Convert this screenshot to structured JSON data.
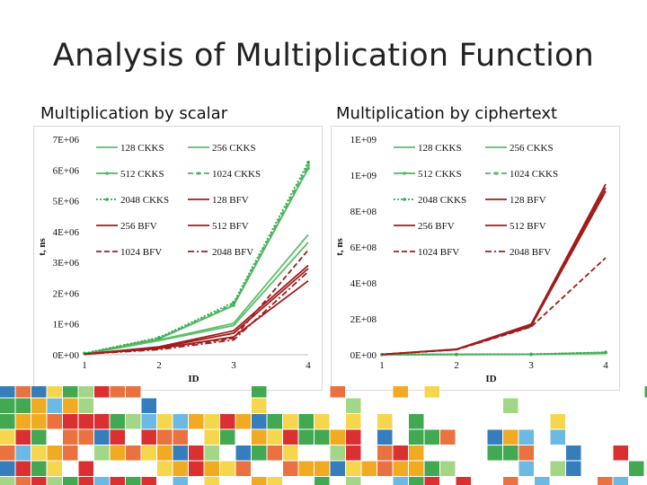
{
  "slide": {
    "title": "Analysis of Multiplication Function"
  },
  "chart_data": [
    {
      "type": "line",
      "title": "Multiplication by scalar",
      "xlabel": "ID",
      "ylabel": "t, ns",
      "x": [
        1,
        2,
        3,
        4
      ],
      "xlim": [
        1,
        4
      ],
      "ylim": [
        0,
        7000000
      ],
      "yticks": [
        "0E+00",
        "1E+06",
        "2E+06",
        "3E+06",
        "4E+06",
        "5E+06",
        "6E+06",
        "7E+06"
      ],
      "xticks": [
        "1",
        "2",
        "3",
        "4"
      ],
      "grid": false,
      "legend_position": "top",
      "series": [
        {
          "name": "128 CKKS",
          "color": "#5cbf6a",
          "dash": "solid",
          "marker": false,
          "values": [
            20000,
            460000,
            950000,
            3650000
          ]
        },
        {
          "name": "256 CKKS",
          "color": "#5cbf6a",
          "dash": "solid",
          "marker": false,
          "values": [
            20000,
            480000,
            1020000,
            3900000
          ]
        },
        {
          "name": "512 CKKS",
          "color": "#4db85e",
          "dash": "solid",
          "marker": true,
          "values": [
            30000,
            520000,
            1600000,
            6050000
          ]
        },
        {
          "name": "1024 CKKS",
          "color": "#4db85e",
          "dash": "dash",
          "marker": true,
          "values": [
            40000,
            540000,
            1650000,
            6150000
          ]
        },
        {
          "name": "2048 CKKS",
          "color": "#3aa854",
          "dash": "dot",
          "marker": true,
          "values": [
            50000,
            560000,
            1700000,
            6250000
          ]
        },
        {
          "name": "128 BFV",
          "color": "#a01c1c",
          "dash": "solid",
          "marker": false,
          "values": [
            20000,
            200000,
            580000,
            2400000
          ]
        },
        {
          "name": "256 BFV",
          "color": "#a01c1c",
          "dash": "solid",
          "marker": false,
          "values": [
            20000,
            230000,
            700000,
            2800000
          ]
        },
        {
          "name": "512 BFV",
          "color": "#a01c1c",
          "dash": "solid",
          "marker": false,
          "values": [
            20000,
            260000,
            780000,
            2900000
          ]
        },
        {
          "name": "1024 BFV",
          "color": "#a01c1c",
          "dash": "dash",
          "marker": false,
          "values": [
            20000,
            210000,
            540000,
            3400000
          ]
        },
        {
          "name": "2048 BFV",
          "color": "#a01c1c",
          "dash": "dashdot",
          "marker": false,
          "values": [
            20000,
            170000,
            480000,
            2700000
          ]
        }
      ]
    },
    {
      "type": "line",
      "title": "Multiplication by ciphertext",
      "xlabel": "ID",
      "ylabel": "t, ns",
      "x": [
        1,
        2,
        3,
        4
      ],
      "xlim": [
        1,
        4
      ],
      "ylim": [
        0,
        1200000000
      ],
      "yticks": [
        "0E+00",
        "2E+08",
        "4E+08",
        "6E+08",
        "8E+08",
        "1E+09",
        "1E+09"
      ],
      "xticks": [
        "1",
        "2",
        "3",
        "4"
      ],
      "grid": false,
      "legend_position": "top",
      "series": [
        {
          "name": "128 CKKS",
          "color": "#5cbf6a",
          "dash": "solid",
          "marker": false,
          "values": [
            1000000,
            1500000,
            2000000,
            9000000
          ]
        },
        {
          "name": "256 CKKS",
          "color": "#5cbf6a",
          "dash": "solid",
          "marker": false,
          "values": [
            1000000,
            1600000,
            2200000,
            10000000
          ]
        },
        {
          "name": "512 CKKS",
          "color": "#4db85e",
          "dash": "solid",
          "marker": true,
          "values": [
            1000000,
            1800000,
            2500000,
            12000000
          ]
        },
        {
          "name": "1024 CKKS",
          "color": "#4db85e",
          "dash": "dash",
          "marker": true,
          "values": [
            1000000,
            1900000,
            2600000,
            13000000
          ]
        },
        {
          "name": "2048 CKKS",
          "color": "#3aa854",
          "dash": "dot",
          "marker": true,
          "values": [
            1000000,
            2000000,
            2800000,
            14000000
          ]
        },
        {
          "name": "128 BFV",
          "color": "#a01c1c",
          "dash": "solid",
          "marker": false,
          "values": [
            2000000,
            30000000,
            160000000,
            910000000
          ]
        },
        {
          "name": "256 BFV",
          "color": "#a01c1c",
          "dash": "solid",
          "marker": false,
          "values": [
            2000000,
            30000000,
            165000000,
            930000000
          ]
        },
        {
          "name": "512 BFV",
          "color": "#a01c1c",
          "dash": "solid",
          "marker": false,
          "values": [
            2000000,
            31000000,
            170000000,
            950000000
          ]
        },
        {
          "name": "1024 BFV",
          "color": "#a01c1c",
          "dash": "dash",
          "marker": false,
          "values": [
            2000000,
            28000000,
            155000000,
            540000000
          ]
        },
        {
          "name": "2048 BFV",
          "color": "#a01c1c",
          "dash": "dashdot",
          "marker": false,
          "values": [
            2000000,
            29000000,
            158000000,
            920000000
          ]
        }
      ]
    }
  ],
  "decoration": {
    "mosaic_colors": [
      "#d7191c",
      "#e8632b",
      "#f0a20a",
      "#2e9e3f",
      "#1f6fb5",
      "#5cb3e0",
      "#9ad17a",
      "#f5d23a"
    ]
  }
}
